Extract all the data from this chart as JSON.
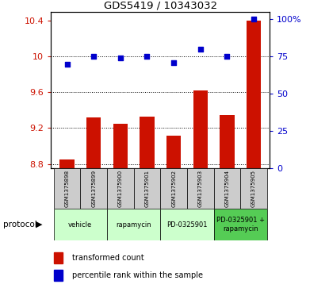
{
  "title": "GDS5419 / 10343032",
  "samples": [
    "GSM1375898",
    "GSM1375899",
    "GSM1375900",
    "GSM1375901",
    "GSM1375902",
    "GSM1375903",
    "GSM1375904",
    "GSM1375905"
  ],
  "transformed_counts": [
    8.85,
    9.32,
    9.25,
    9.33,
    9.12,
    9.62,
    9.35,
    10.4
  ],
  "percentile_ranks": [
    70,
    75,
    74,
    75,
    71,
    80,
    75,
    100
  ],
  "protocols": [
    {
      "label": "vehicle",
      "samples": [
        0,
        1
      ],
      "color": "#ccffcc"
    },
    {
      "label": "rapamycin",
      "samples": [
        2,
        3
      ],
      "color": "#ccffcc"
    },
    {
      "label": "PD-0325901",
      "samples": [
        4,
        5
      ],
      "color": "#88ee88"
    },
    {
      "label": "PD-0325901 +\nrapamycin",
      "samples": [
        6,
        7
      ],
      "color": "#55cc55"
    }
  ],
  "ylim_left": [
    8.75,
    10.5
  ],
  "ylim_right": [
    0,
    105.26
  ],
  "yticks_left": [
    8.8,
    9.2,
    9.6,
    10.0,
    10.4
  ],
  "yticks_left_labels": [
    "8.8",
    "9.2",
    "9.6",
    "10",
    "10.4"
  ],
  "yticks_right": [
    0,
    25,
    50,
    75,
    100
  ],
  "yticks_right_labels": [
    "0",
    "25",
    "50",
    "75",
    "100%"
  ],
  "bar_color": "#cc1100",
  "dot_color": "#0000cc",
  "bar_width": 0.55,
  "grid_lines": [
    8.8,
    9.2,
    9.6,
    10.0
  ],
  "legend_bar_label": "transformed count",
  "legend_dot_label": "percentile rank within the sample",
  "protocol_label": "protocol",
  "sample_box_color": "#cccccc",
  "proto_color_light": "#ccffcc",
  "proto_color_dark": "#55cc55"
}
